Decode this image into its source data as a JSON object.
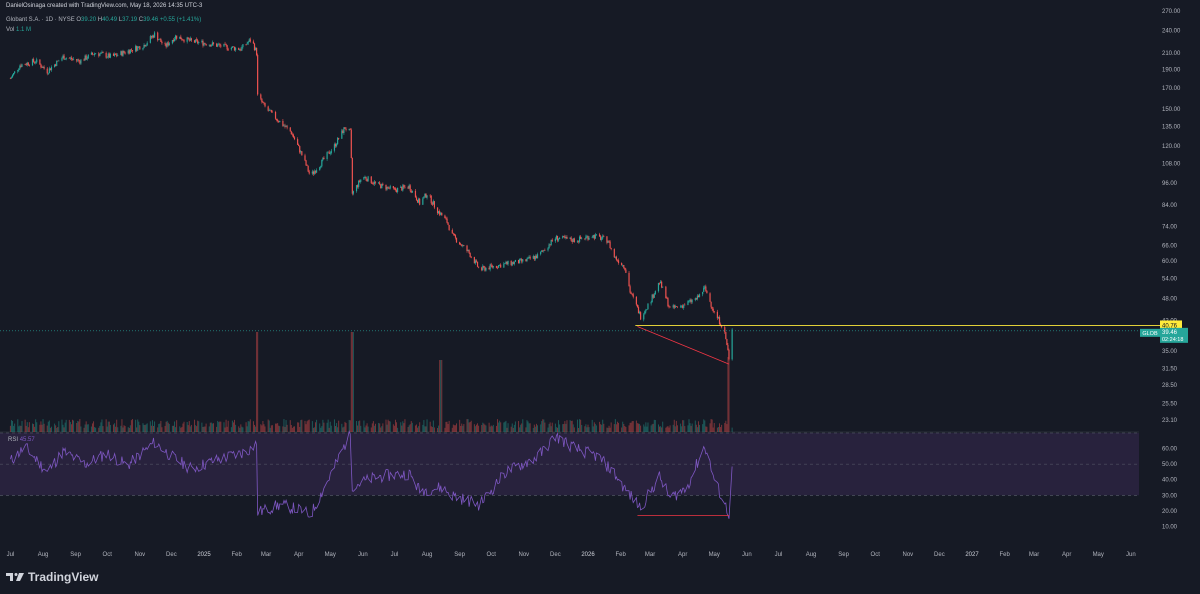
{
  "header": {
    "attribution": "DanielOsinaga created with TradingView.com, May 18, 2026 14:35 UTC-3",
    "symbol_desc": "Globant S.A. · 1D · NYSE",
    "o_label": "O",
    "o_val": "39.20",
    "h_label": "H",
    "h_val": "40.49",
    "l_label": "L",
    "l_val": "37.19",
    "c_label": "C",
    "c_val": "39.46",
    "change": "+0.55 (+1.41%)",
    "vol_label": "Vol",
    "vol_val": "1.1 M"
  },
  "rsi": {
    "label": "RSI",
    "value": "45.57"
  },
  "footer": {
    "brand": "TradingView"
  },
  "colors": {
    "background": "#161a25",
    "up": "#26a69a",
    "down": "#ef5350",
    "rsi_line": "#7e57c2",
    "rsi_band": "#2a2340",
    "level_line": "#ffeb3b",
    "divergence": "#f23645"
  },
  "chart_data": [
    {
      "type": "candlestick",
      "symbol": "GLOB",
      "title": "Globant S.A. · 1D · NYSE",
      "yscale": "log",
      "ylim": [
        22,
        275
      ],
      "y_ticks": [
        270.0,
        240.0,
        210.0,
        190.0,
        170.0,
        150.0,
        135.0,
        120.0,
        108.0,
        96.0,
        84.0,
        74.0,
        66.0,
        60.0,
        54.0,
        48.0,
        42.0,
        35.0,
        31.5,
        28.5,
        25.5,
        23.1
      ],
      "x_ticks": [
        "Jul",
        "Aug",
        "Sep",
        "Oct",
        "Nov",
        "Dec",
        "2025",
        "Feb",
        "Mar",
        "Apr",
        "May",
        "Jun",
        "Jul",
        "Aug",
        "Sep",
        "Oct",
        "Nov",
        "Dec",
        "2026",
        "Feb",
        "Mar",
        "Apr",
        "May",
        "Jun",
        "Jul",
        "Aug",
        "Sep",
        "Oct",
        "Nov",
        "Dec",
        "2027",
        "Feb",
        "Mar",
        "Apr",
        "May",
        "Jun"
      ],
      "price_path": [
        [
          "2024-07-01",
          180
        ],
        [
          "2024-07-10",
          195
        ],
        [
          "2024-07-25",
          200
        ],
        [
          "2024-08-05",
          188
        ],
        [
          "2024-08-20",
          205
        ],
        [
          "2024-09-05",
          200
        ],
        [
          "2024-09-20",
          210
        ],
        [
          "2024-10-05",
          205
        ],
        [
          "2024-10-20",
          212
        ],
        [
          "2024-11-05",
          220
        ],
        [
          "2024-11-15",
          235
        ],
        [
          "2024-11-25",
          218
        ],
        [
          "2024-12-05",
          232
        ],
        [
          "2024-12-20",
          225
        ],
        [
          "2025-01-05",
          222
        ],
        [
          "2025-01-20",
          218
        ],
        [
          "2025-02-05",
          215
        ],
        [
          "2025-02-15",
          228
        ],
        [
          "2025-02-20",
          210
        ],
        [
          "2025-02-21",
          162
        ],
        [
          "2025-03-01",
          150
        ],
        [
          "2025-03-15",
          138
        ],
        [
          "2025-03-25",
          130
        ],
        [
          "2025-04-05",
          112
        ],
        [
          "2025-04-12",
          100
        ],
        [
          "2025-04-22",
          108
        ],
        [
          "2025-05-05",
          120
        ],
        [
          "2025-05-15",
          134
        ],
        [
          "2025-05-20",
          130
        ],
        [
          "2025-05-22",
          90
        ],
        [
          "2025-06-01",
          100
        ],
        [
          "2025-06-15",
          95
        ],
        [
          "2025-07-01",
          92
        ],
        [
          "2025-07-15",
          94
        ],
        [
          "2025-07-25",
          85
        ],
        [
          "2025-08-01",
          90
        ],
        [
          "2025-08-10",
          82
        ],
        [
          "2025-08-20",
          76
        ],
        [
          "2025-08-25",
          70
        ],
        [
          "2025-09-10",
          63
        ],
        [
          "2025-09-20",
          57
        ],
        [
          "2025-10-01",
          58
        ],
        [
          "2025-10-15",
          59
        ],
        [
          "2025-11-01",
          60
        ],
        [
          "2025-11-15",
          62
        ],
        [
          "2025-12-01",
          69
        ],
        [
          "2025-12-20",
          68
        ],
        [
          "2026-01-05",
          70
        ],
        [
          "2026-01-20",
          68
        ],
        [
          "2026-01-25",
          62
        ],
        [
          "2026-02-05",
          58
        ],
        [
          "2026-02-10",
          50
        ],
        [
          "2026-02-20",
          43
        ],
        [
          "2026-03-01",
          47
        ],
        [
          "2026-03-10",
          53
        ],
        [
          "2026-03-20",
          45
        ],
        [
          "2026-04-01",
          46
        ],
        [
          "2026-04-15",
          48
        ],
        [
          "2026-04-22",
          51
        ],
        [
          "2026-05-01",
          44
        ],
        [
          "2026-05-10",
          40
        ],
        [
          "2026-05-14",
          35
        ],
        [
          "2026-05-15",
          33
        ],
        [
          "2026-05-18",
          39.46
        ]
      ],
      "current_price": 39.46,
      "current_label": "GLOB",
      "countdown": "02:24:18",
      "horizontal_level": 40.76,
      "horizontal_level_from": "2026-02-15",
      "divergence_line": [
        [
          "2026-02-17",
          40.5
        ],
        [
          "2026-05-15",
          32.3
        ]
      ],
      "volume_spikes": [
        [
          "2025-02-21",
          1.0
        ],
        [
          "2025-05-22",
          1.0
        ],
        [
          "2025-08-14",
          0.72
        ],
        [
          "2026-05-15",
          0.75
        ]
      ]
    },
    {
      "type": "line",
      "name": "RSI",
      "last_value": 45.57,
      "ylim": [
        0,
        70
      ],
      "y_ticks": [
        60.0,
        50.0,
        40.0,
        30.0,
        20.0,
        10.0
      ],
      "band": [
        30,
        70
      ],
      "path": [
        [
          "2024-07-01",
          52
        ],
        [
          "2024-07-15",
          61
        ],
        [
          "2024-08-05",
          45
        ],
        [
          "2024-08-20",
          58
        ],
        [
          "2024-09-10",
          50
        ],
        [
          "2024-10-01",
          57
        ],
        [
          "2024-10-20",
          49
        ],
        [
          "2024-11-15",
          64
        ],
        [
          "2024-12-01",
          55
        ],
        [
          "2024-12-20",
          47
        ],
        [
          "2025-01-10",
          52
        ],
        [
          "2025-02-10",
          58
        ],
        [
          "2025-02-20",
          63
        ],
        [
          "2025-02-21",
          19
        ],
        [
          "2025-03-15",
          24
        ],
        [
          "2025-04-05",
          20
        ],
        [
          "2025-04-12",
          17
        ],
        [
          "2025-05-05",
          48
        ],
        [
          "2025-05-20",
          70
        ],
        [
          "2025-05-22",
          36
        ],
        [
          "2025-06-15",
          42
        ],
        [
          "2025-07-15",
          44
        ],
        [
          "2025-07-25",
          33
        ],
        [
          "2025-08-15",
          35
        ],
        [
          "2025-08-25",
          30
        ],
        [
          "2025-09-20",
          24
        ],
        [
          "2025-10-15",
          45
        ],
        [
          "2025-11-15",
          55
        ],
        [
          "2025-12-01",
          68
        ],
        [
          "2025-12-20",
          60
        ],
        [
          "2026-01-10",
          55
        ],
        [
          "2026-01-25",
          45
        ],
        [
          "2026-02-05",
          34
        ],
        [
          "2026-02-20",
          22
        ],
        [
          "2026-03-10",
          42
        ],
        [
          "2026-03-20",
          28
        ],
        [
          "2026-04-05",
          35
        ],
        [
          "2026-04-22",
          62
        ],
        [
          "2026-05-01",
          40
        ],
        [
          "2026-05-15",
          18
        ],
        [
          "2026-05-18",
          45.57
        ]
      ],
      "divergence_line": [
        [
          "2026-02-17",
          17
        ],
        [
          "2026-05-15",
          17
        ]
      ]
    }
  ]
}
